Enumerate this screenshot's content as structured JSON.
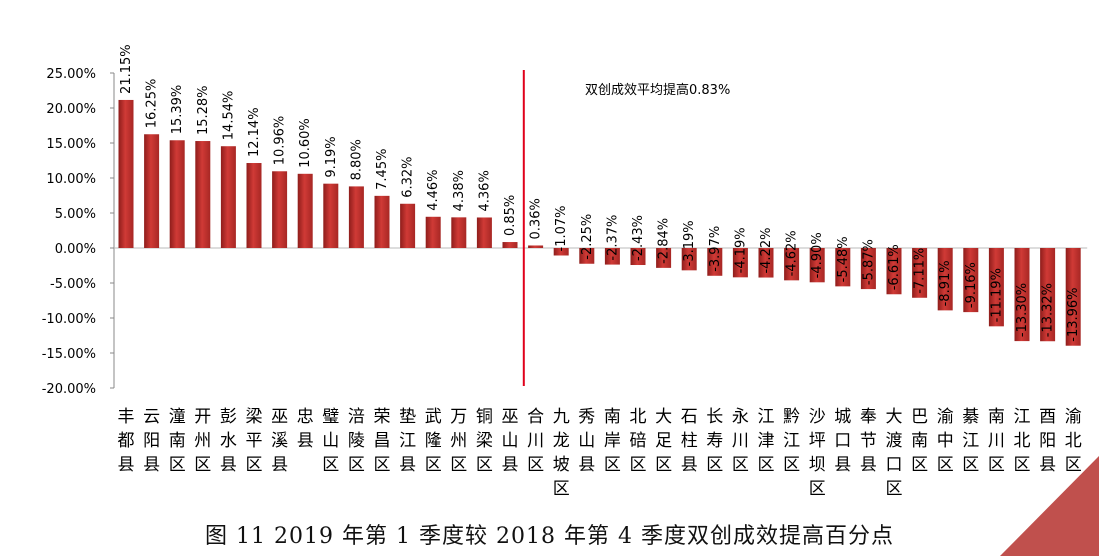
{
  "caption": "图 11 2019 年第 1 季度较 2018 年第 4 季度双创成效提高百分点",
  "colors": {
    "bar": "#c0312f",
    "bar_dark": "#8e1d1b",
    "avg_line": "#e0001b",
    "corner": "#c0504d"
  },
  "chart_data": {
    "type": "bar",
    "annotation": "双创成效平均提高0.83%",
    "average": 0.83,
    "ylim": [
      -20,
      25
    ],
    "yticks": [
      "25.00%",
      "20.00%",
      "15.00%",
      "10.00%",
      "5.00%",
      "0.00%",
      "-5.00%",
      "-10.00%",
      "-15.00%",
      "-20.00%"
    ],
    "categories": [
      "丰都县",
      "云阳县",
      "潼南区",
      "开州区",
      "彭水县",
      "梁平区",
      "巫溪县",
      "忠县",
      "璧山区",
      "涪陵区",
      "荣昌区",
      "垫江县",
      "武隆区",
      "万州区",
      "铜梁区",
      "巫山县",
      "合川区",
      "九龙坡区",
      "秀山县",
      "南岸区",
      "北碚区",
      "大足区",
      "石柱县",
      "长寿区",
      "永川区",
      "江津区",
      "黔江区",
      "沙坪坝区",
      "城口县",
      "奉节县",
      "大渡口区",
      "巴南区",
      "渝中区",
      "綦江区",
      "南川区",
      "江北区",
      "酉阳县",
      "渝北区"
    ],
    "values": [
      21.15,
      16.25,
      15.39,
      15.28,
      14.54,
      12.14,
      10.96,
      10.6,
      9.19,
      8.8,
      7.45,
      6.32,
      4.46,
      4.38,
      4.36,
      0.85,
      0.36,
      -1.07,
      -2.25,
      -2.37,
      -2.43,
      -2.84,
      -3.19,
      -3.97,
      -4.19,
      -4.22,
      -4.62,
      -4.9,
      -5.48,
      -5.87,
      -6.61,
      -7.11,
      -8.91,
      -9.16,
      -11.19,
      -13.3,
      -13.32,
      -13.96
    ],
    "data_labels": [
      "21.15%",
      "16.25%",
      "15.39%",
      "15.28%",
      "14.54%",
      "12.14%",
      "10.96%",
      "10.60%",
      "9.19%",
      "8.80%",
      "7.45%",
      "6.32%",
      "4.46%",
      "4.38%",
      "4.36%",
      "0.85%",
      "0.36%",
      "-1.07%",
      "-2.25%",
      "-2.37%",
      "-2.43%",
      "-2.84%",
      "-3.19%",
      "-3.97%",
      "-4.19%",
      "-4.22%",
      "-4.62%",
      "-4.90%",
      "-5.48%",
      "-5.87%",
      "-6.61%",
      "-7.11%",
      "-8.91%",
      "-9.16%",
      "-11.19%",
      "-13.30%",
      "-13.32%",
      "-13.96%"
    ]
  }
}
